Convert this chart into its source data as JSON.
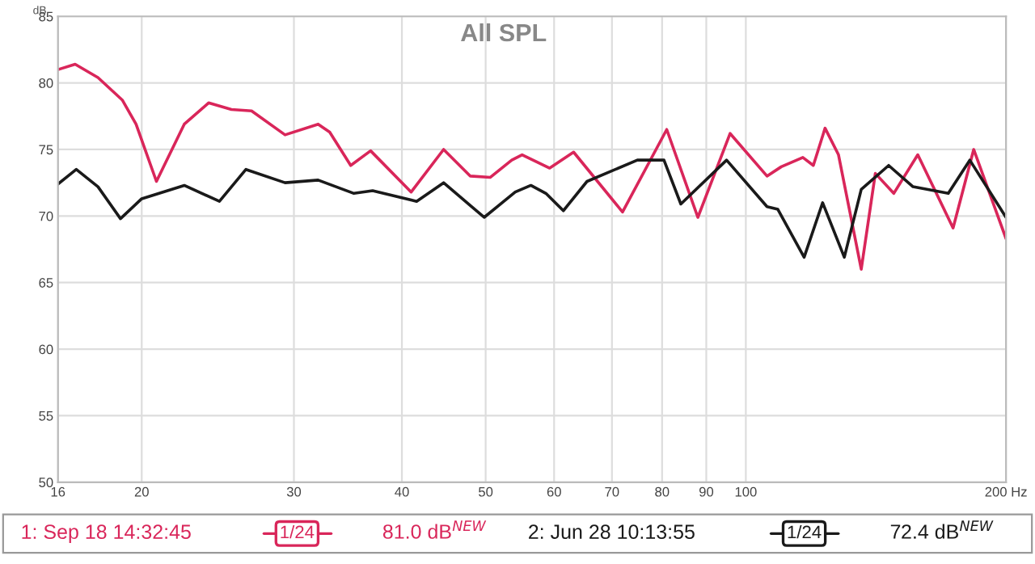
{
  "chart_data": {
    "type": "line",
    "title": "All SPL",
    "ylabel": "dB",
    "log": "x",
    "xlim": [
      16,
      200
    ],
    "xticks": [
      16,
      20,
      30,
      40,
      50,
      60,
      70,
      80,
      90,
      100,
      {
        "value": 200,
        "label": "200 Hz"
      }
    ],
    "ylim": [
      50,
      85
    ],
    "yticks": [
      50,
      55,
      60,
      65,
      70,
      75,
      80,
      85
    ],
    "grid": true,
    "legend": "bottom",
    "marker": "none",
    "line_style": "solid",
    "series": [
      {
        "name": "1: Sep 18 14:32:45",
        "color": "#d9265a",
        "x": [
          16,
          16.75,
          17.8,
          19.0,
          19.7,
          20.8,
          22.4,
          23.9,
          25.4,
          26.8,
          29.3,
          32.0,
          33.0,
          34.9,
          36.8,
          41.0,
          44.7,
          48.0,
          50.6,
          53.6,
          55.1,
          59.3,
          63.2,
          72.0,
          81.0,
          88.0,
          95.9,
          105.8,
          109.9,
          116.4,
          119.7,
          123.5,
          128.0,
          136.0,
          141.2,
          148.3,
          158.1,
          173.7,
          183.5,
          200
        ],
        "values": [
          81.0,
          81.4,
          80.4,
          78.7,
          76.9,
          72.6,
          76.9,
          78.5,
          78.0,
          77.9,
          76.1,
          76.9,
          76.3,
          73.8,
          74.9,
          71.8,
          75.0,
          73.0,
          72.9,
          74.2,
          74.6,
          73.6,
          74.8,
          70.3,
          76.5,
          69.9,
          76.2,
          73.0,
          73.7,
          74.4,
          73.8,
          76.6,
          74.6,
          66.0,
          73.2,
          71.7,
          74.6,
          69.1,
          75.0,
          68.3
        ]
      },
      {
        "name": "2: Jun 28 10:13:55",
        "color": "#1a1a1a",
        "x": [
          16,
          16.8,
          17.8,
          18.9,
          20.0,
          22.4,
          24.6,
          26.4,
          29.3,
          32.0,
          35.2,
          37.0,
          41.6,
          44.7,
          49.8,
          54.1,
          56.4,
          58.7,
          61.5,
          65.5,
          74.9,
          80.4,
          84.1,
          95.0,
          105.8,
          108.9,
          116.8,
          122.7,
          130.0,
          136.0,
          146.3,
          156.1,
          171.5,
          181.6,
          200
        ],
        "values": [
          72.4,
          73.5,
          72.2,
          69.8,
          71.3,
          72.3,
          71.1,
          73.5,
          72.5,
          72.7,
          71.7,
          71.9,
          71.1,
          72.5,
          69.9,
          71.8,
          72.3,
          71.7,
          70.4,
          72.6,
          74.2,
          74.2,
          70.9,
          74.2,
          70.7,
          70.5,
          66.9,
          71.0,
          66.9,
          72.0,
          73.8,
          72.2,
          71.7,
          74.2,
          69.9
        ]
      }
    ],
    "annotations": [
      "1/24",
      "81.0 dB$^{NEW}$",
      "1/24",
      "72.4 dB$^{NEW}$"
    ]
  }
}
